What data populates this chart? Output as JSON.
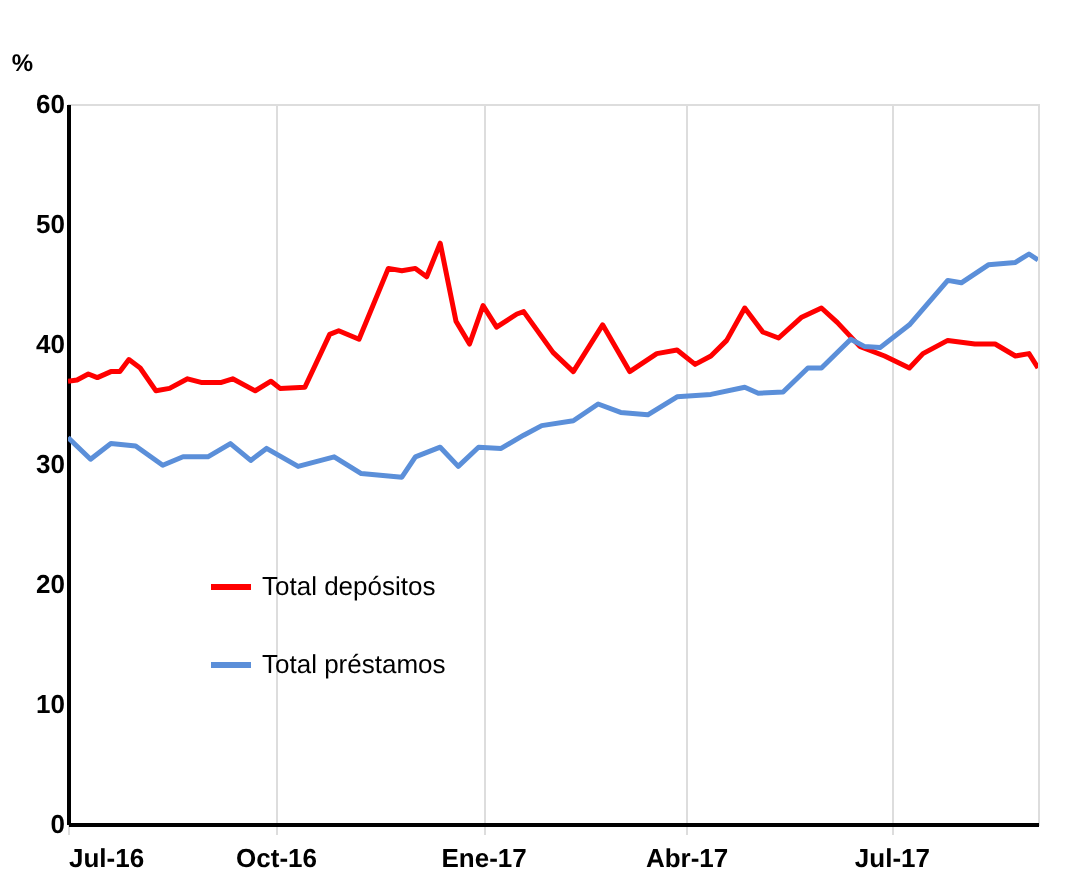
{
  "chart_data": {
    "type": "line",
    "ylabel": "%",
    "xlim": [
      "2016-07-01",
      "2017-09-04"
    ],
    "xticks": [
      {
        "value": "2016-07-01",
        "label": "Jul-16"
      },
      {
        "value": "2016-10-01",
        "label": "Oct-16"
      },
      {
        "value": "2017-01-01",
        "label": "Ene-17"
      },
      {
        "value": "2017-04-01",
        "label": "Abr-17"
      },
      {
        "value": "2017-07-01",
        "label": "Jul-17"
      }
    ],
    "ylim": [
      0,
      60
    ],
    "yticks": [
      0,
      10,
      20,
      30,
      40,
      50,
      60
    ],
    "grid": "x",
    "legend": "bottom left",
    "line_style": "solid",
    "marker": "none",
    "series": [
      {
        "name": "Total depósitos",
        "color": "#ff0000",
        "x": [
          "2016-07-01",
          "2016-07-05",
          "2016-07-10",
          "2016-07-14",
          "2016-07-20",
          "2016-07-24",
          "2016-07-28",
          "2016-08-02",
          "2016-08-09",
          "2016-08-15",
          "2016-08-23",
          "2016-08-29",
          "2016-09-07",
          "2016-09-12",
          "2016-09-22",
          "2016-09-29",
          "2016-10-03",
          "2016-10-14",
          "2016-10-25",
          "2016-10-29",
          "2016-11-07",
          "2016-11-20",
          "2016-11-26",
          "2016-12-02",
          "2016-12-07",
          "2016-12-13",
          "2016-12-20",
          "2016-12-26",
          "2017-01-01",
          "2017-01-07",
          "2017-01-16",
          "2017-01-19",
          "2017-02-01",
          "2017-02-10",
          "2017-02-23",
          "2017-03-07",
          "2017-03-19",
          "2017-03-28",
          "2017-04-05",
          "2017-04-12",
          "2017-04-19",
          "2017-04-27",
          "2017-05-05",
          "2017-05-12",
          "2017-05-22",
          "2017-05-31",
          "2017-06-07",
          "2017-06-17",
          "2017-06-28",
          "2017-07-09",
          "2017-07-15",
          "2017-07-26",
          "2017-08-07",
          "2017-08-16",
          "2017-08-25",
          "2017-08-31",
          "2017-09-04"
        ],
        "values": [
          36.9,
          37.0,
          37.5,
          37.2,
          37.7,
          37.7,
          38.7,
          38.0,
          36.1,
          36.3,
          37.1,
          36.8,
          36.8,
          37.1,
          36.1,
          36.9,
          36.3,
          36.4,
          40.8,
          41.1,
          40.4,
          46.3,
          46.1,
          46.3,
          45.6,
          48.4,
          41.9,
          40.0,
          43.2,
          41.4,
          42.5,
          42.7,
          39.3,
          37.7,
          41.6,
          37.7,
          39.2,
          39.5,
          38.3,
          39.0,
          40.3,
          43.0,
          41.0,
          40.5,
          42.2,
          43.0,
          41.8,
          39.8,
          39.0,
          38.0,
          39.2,
          40.3,
          40.0,
          40.0,
          39.0,
          39.2,
          38.0
        ]
      },
      {
        "name": "Total préstamos",
        "color": "#5b8fd9",
        "x": [
          "2016-07-01",
          "2016-07-11",
          "2016-07-20",
          "2016-07-31",
          "2016-08-12",
          "2016-08-21",
          "2016-09-01",
          "2016-09-11",
          "2016-09-20",
          "2016-09-27",
          "2016-10-11",
          "2016-10-27",
          "2016-11-08",
          "2016-11-26",
          "2016-12-02",
          "2016-12-13",
          "2016-12-21",
          "2016-12-30",
          "2017-01-09",
          "2017-01-19",
          "2017-01-27",
          "2017-02-10",
          "2017-02-21",
          "2017-03-03",
          "2017-03-15",
          "2017-03-28",
          "2017-04-12",
          "2017-04-27",
          "2017-05-03",
          "2017-05-14",
          "2017-05-25",
          "2017-05-31",
          "2017-06-13",
          "2017-06-19",
          "2017-06-26",
          "2017-07-09",
          "2017-07-26",
          "2017-08-01",
          "2017-08-13",
          "2017-08-25",
          "2017-08-31",
          "2017-09-04"
        ],
        "values": [
          32.2,
          30.4,
          31.7,
          31.5,
          29.9,
          30.6,
          30.6,
          31.7,
          30.3,
          31.3,
          29.8,
          30.6,
          29.2,
          28.9,
          30.6,
          31.4,
          29.8,
          31.4,
          31.3,
          32.4,
          33.2,
          33.6,
          35.0,
          34.3,
          34.1,
          35.6,
          35.8,
          36.4,
          35.9,
          36.0,
          38.0,
          38.0,
          40.4,
          39.8,
          39.7,
          41.6,
          45.3,
          45.1,
          46.6,
          46.8,
          47.5,
          47.0
        ]
      }
    ]
  }
}
